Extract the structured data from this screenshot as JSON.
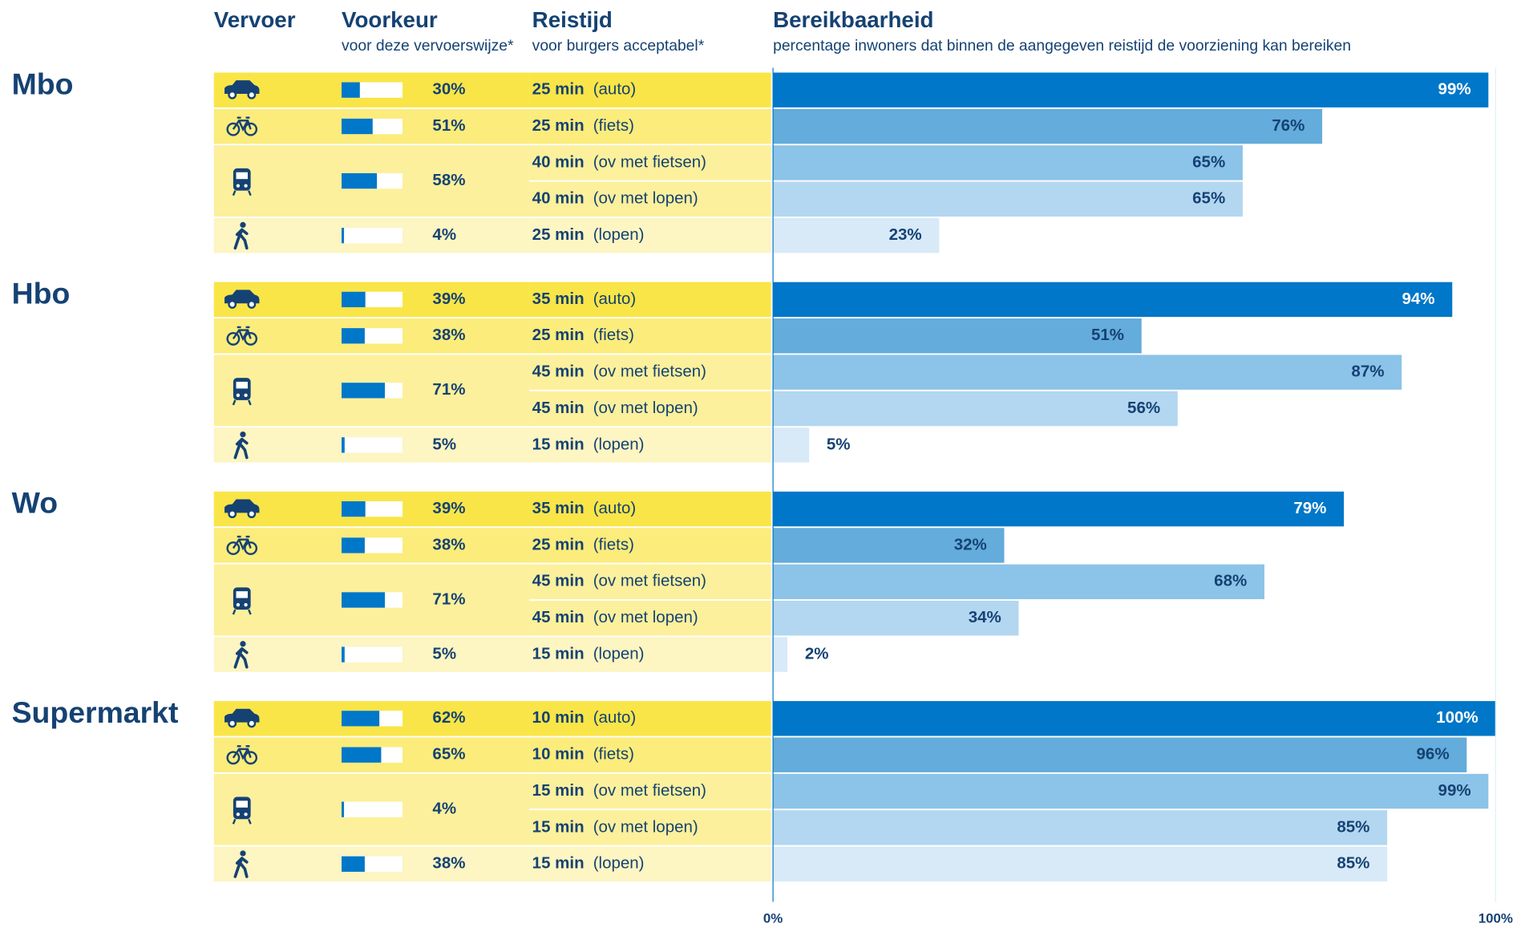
{
  "chart_data": {
    "type": "reachability",
    "headers": {
      "transport": "Vervoer",
      "preference": "Voorkeur",
      "preference_sub": "voor deze vervoerswijze*",
      "time": "Reistijd",
      "time_sub": "voor burgers acceptabel*",
      "reach": "Bereikbaarheid",
      "reach_sub": "percentage inwoners dat binnen de aangegeven reistijd de voorziening kan bereiken"
    },
    "xlim": [
      0,
      100
    ],
    "xticks": [
      {
        "value": 0,
        "label": "0%"
      },
      {
        "value": 100,
        "label": "100%"
      }
    ],
    "colors": [
      "#0077c8",
      "#63acdb",
      "#8cc3e8",
      "#b3d7f0",
      "#d8eaf8"
    ],
    "groups": [
      {
        "name": "Mbo",
        "preference": {
          "values": [
            30,
            51,
            58,
            null,
            4
          ],
          "value_labels": [
            "30%",
            "51%",
            "58%",
            null,
            "4%"
          ]
        },
        "times": [
          {
            "minutes": "25 min",
            "mode": "(auto)"
          },
          {
            "minutes": "25 min",
            "mode": "(fiets)"
          },
          {
            "minutes": "40 min",
            "mode": "(ov met fietsen)"
          },
          {
            "minutes": "40 min",
            "mode": "(ov met lopen)"
          },
          {
            "minutes": "25 min",
            "mode": "(lopen)"
          }
        ],
        "reach": {
          "values": [
            99,
            76,
            65,
            65,
            23
          ],
          "value_labels": [
            "99%",
            "76%",
            "65%",
            "65%",
            "23%"
          ]
        }
      },
      {
        "name": "Hbo",
        "preference": {
          "values": [
            39,
            38,
            71,
            null,
            5
          ],
          "value_labels": [
            "39%",
            "38%",
            "71%",
            null,
            "5%"
          ]
        },
        "times": [
          {
            "minutes": "35 min",
            "mode": "(auto)"
          },
          {
            "minutes": "25 min",
            "mode": "(fiets)"
          },
          {
            "minutes": "45 min",
            "mode": "(ov met fietsen)"
          },
          {
            "minutes": "45 min",
            "mode": "(ov met lopen)"
          },
          {
            "minutes": "15 min",
            "mode": "(lopen)"
          }
        ],
        "reach": {
          "values": [
            94,
            51,
            87,
            56,
            5
          ],
          "value_labels": [
            "94%",
            "51%",
            "87%",
            "56%",
            "5%"
          ]
        }
      },
      {
        "name": "Wo",
        "preference": {
          "values": [
            39,
            38,
            71,
            null,
            5
          ],
          "value_labels": [
            "39%",
            "38%",
            "71%",
            null,
            "5%"
          ]
        },
        "times": [
          {
            "minutes": "35 min",
            "mode": "(auto)"
          },
          {
            "minutes": "25 min",
            "mode": "(fiets)"
          },
          {
            "minutes": "45 min",
            "mode": "(ov met fietsen)"
          },
          {
            "minutes": "45 min",
            "mode": "(ov met lopen)"
          },
          {
            "minutes": "15 min",
            "mode": "(lopen)"
          }
        ],
        "reach": {
          "values": [
            79,
            32,
            68,
            34,
            2
          ],
          "value_labels": [
            "79%",
            "32%",
            "68%",
            "34%",
            "2%"
          ]
        }
      },
      {
        "name": "Supermarkt",
        "preference": {
          "values": [
            62,
            65,
            4,
            null,
            38
          ],
          "value_labels": [
            "62%",
            "65%",
            "4%",
            null,
            "38%"
          ]
        },
        "times": [
          {
            "minutes": "10 min",
            "mode": "(auto)"
          },
          {
            "minutes": "10 min",
            "mode": "(fiets)"
          },
          {
            "minutes": "15 min",
            "mode": "(ov met fietsen)"
          },
          {
            "minutes": "15 min",
            "mode": "(ov met lopen)"
          },
          {
            "minutes": "15 min",
            "mode": "(lopen)"
          }
        ],
        "reach": {
          "values": [
            100,
            96,
            99,
            85,
            85
          ],
          "value_labels": [
            "100%",
            "96%",
            "99%",
            "85%",
            "85%"
          ]
        }
      }
    ]
  }
}
